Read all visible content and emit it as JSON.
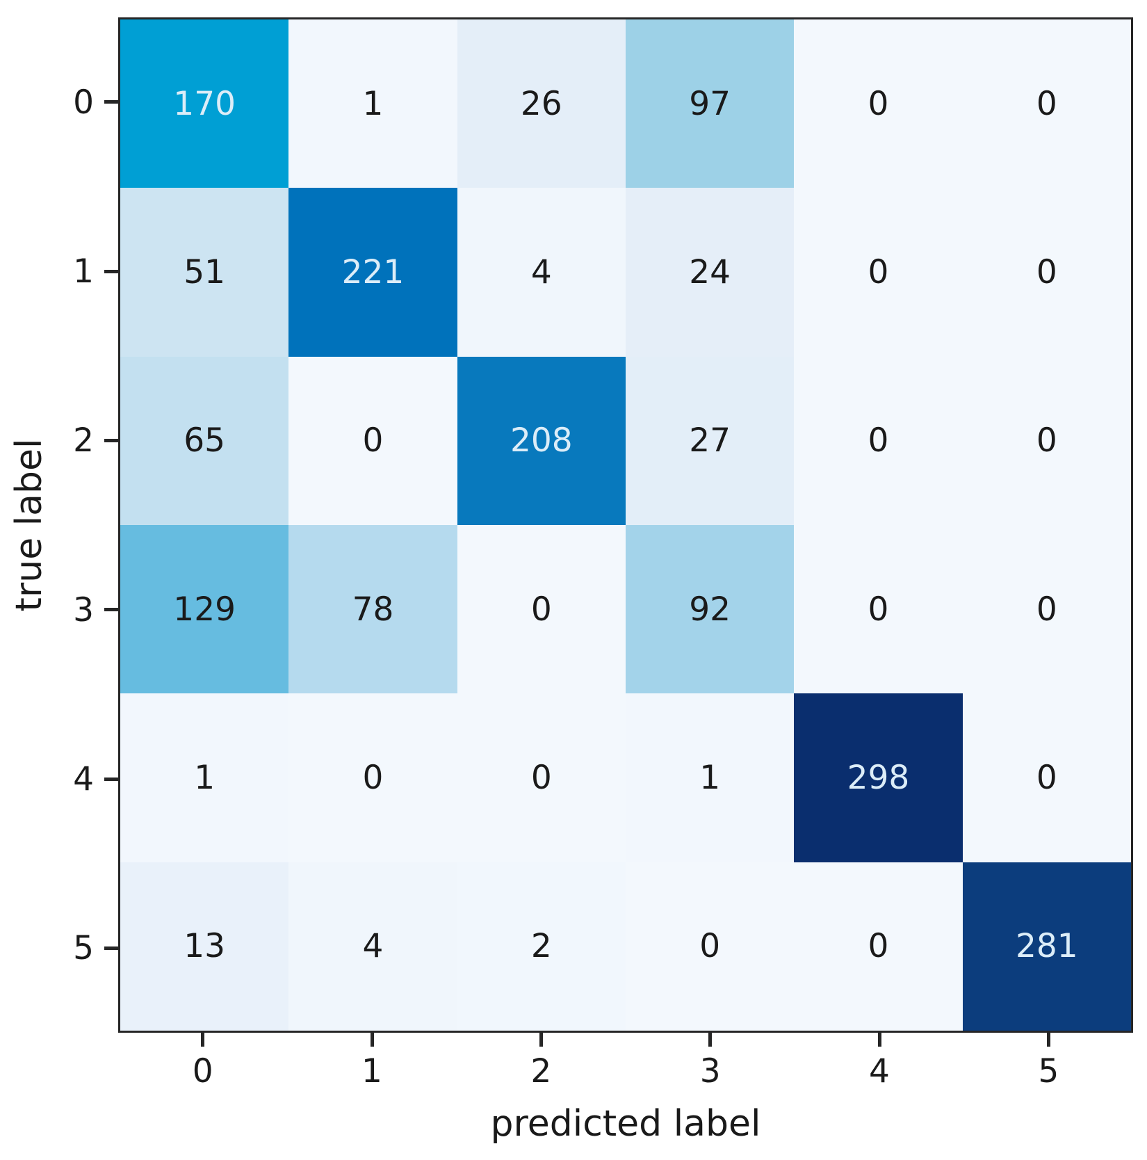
{
  "chart_data": {
    "type": "heatmap",
    "title": "",
    "xlabel": "predicted label",
    "ylabel": "true label",
    "x_tick_labels": [
      "0",
      "1",
      "2",
      "3",
      "4",
      "5"
    ],
    "y_tick_labels": [
      "0",
      "1",
      "2",
      "3",
      "4",
      "5"
    ],
    "matrix": [
      [
        170,
        1,
        26,
        97,
        0,
        0
      ],
      [
        51,
        221,
        4,
        24,
        0,
        0
      ],
      [
        65,
        0,
        208,
        27,
        0,
        0
      ],
      [
        129,
        78,
        0,
        92,
        0,
        0
      ],
      [
        1,
        0,
        0,
        1,
        298,
        0
      ],
      [
        13,
        4,
        2,
        0,
        0,
        281
      ]
    ],
    "vmin": 0,
    "vmax": 298,
    "grid": false,
    "legend": false,
    "colormap": {
      "name": "blues-sequential",
      "stops": [
        [
          0,
          "#f3f8fd"
        ],
        [
          13,
          "#e9f1fa"
        ],
        [
          26,
          "#e4eef8"
        ],
        [
          51,
          "#cde4f2"
        ],
        [
          65,
          "#c3e0f0"
        ],
        [
          78,
          "#b5daee"
        ],
        [
          92,
          "#a3d3ea"
        ],
        [
          97,
          "#9dd1e7"
        ],
        [
          129,
          "#66bce0"
        ],
        [
          170,
          "#009fd4"
        ],
        [
          208,
          "#0879bd"
        ],
        [
          221,
          "#0072bb"
        ],
        [
          281,
          "#0c3d7d"
        ],
        [
          298,
          "#0a2e6e"
        ]
      ],
      "light_text_threshold": 150,
      "dark_text_color": "#1a1a1a",
      "light_text_color": "#dcedf8",
      "spine_color": "#262626"
    }
  }
}
